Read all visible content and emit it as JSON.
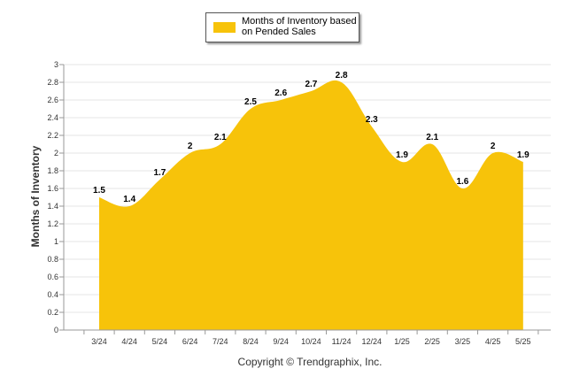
{
  "legend": {
    "label": "Months of Inventory based on Pended Sales",
    "color": "#F7C30A"
  },
  "copyright": "Copyright © Trendgraphix, Inc.",
  "chart_data": {
    "type": "area",
    "title": "",
    "xlabel": "",
    "ylabel": "Months of Inventory",
    "ylim": [
      0,
      3
    ],
    "yticks": [
      "0",
      "0.2",
      "0.4",
      "0.6",
      "0.8",
      "1",
      "1.2",
      "1.4",
      "1.6",
      "1.8",
      "2",
      "2.2",
      "2.4",
      "2.6",
      "2.8",
      "3"
    ],
    "grid": true,
    "legend_position": "top",
    "categories": [
      "3/24",
      "4/24",
      "5/24",
      "6/24",
      "7/24",
      "8/24",
      "9/24",
      "10/24",
      "11/24",
      "12/24",
      "1/25",
      "2/25",
      "3/25",
      "4/25",
      "5/25"
    ],
    "series": [
      {
        "name": "Months of Inventory based on Pended Sales",
        "values": [
          1.5,
          1.4,
          1.7,
          2.0,
          2.1,
          2.5,
          2.6,
          2.7,
          2.8,
          2.3,
          1.9,
          2.1,
          1.6,
          2.0,
          1.9
        ],
        "labels": [
          "1.5",
          "1.4",
          "1.7",
          "2",
          "2.1",
          "2.5",
          "2.6",
          "2.7",
          "2.8",
          "2.3",
          "1.9",
          "2.1",
          "1.6",
          "2",
          "1.9"
        ]
      }
    ]
  }
}
